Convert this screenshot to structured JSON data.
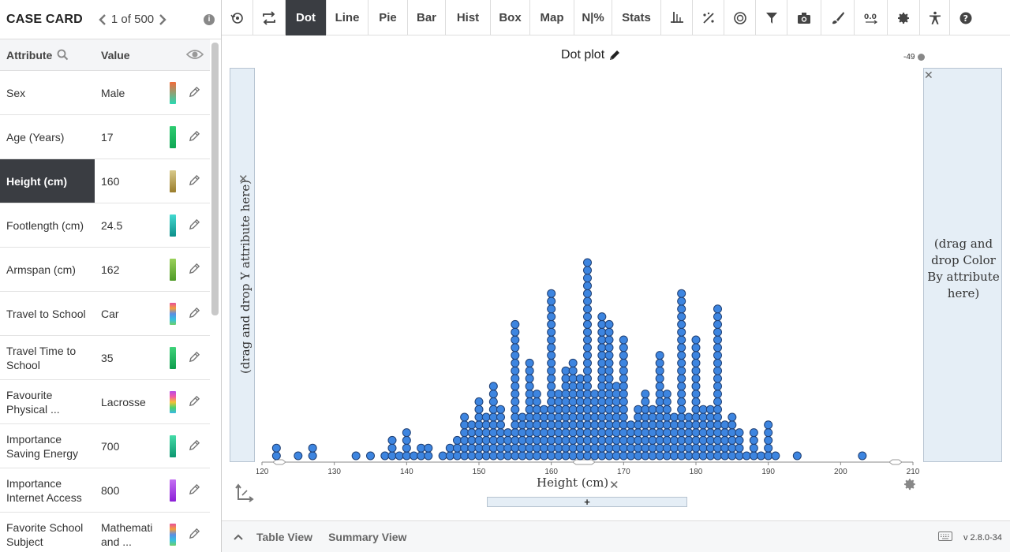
{
  "case_card": {
    "title": "CASE CARD",
    "position": "1 of 500",
    "attr_header": "Attribute",
    "value_header": "Value",
    "rows": [
      {
        "attribute": "Sex",
        "value": "Male",
        "swatch": [
          "#f26b3a",
          "#28d9b2"
        ]
      },
      {
        "attribute": "Age (Years)",
        "value": "17",
        "swatch": [
          "#2ecc71",
          "#0fa653"
        ]
      },
      {
        "attribute": "Height (cm)",
        "value": "160",
        "swatch": [
          "#d8c98a",
          "#9a7d2c"
        ],
        "selected": true
      },
      {
        "attribute": "Footlength (cm)",
        "value": "24.5",
        "swatch": [
          "#43d9d0",
          "#0d8f8a"
        ]
      },
      {
        "attribute": "Armspan (cm)",
        "value": "162",
        "swatch": [
          "#9ad15a",
          "#4f9a27"
        ]
      },
      {
        "attribute": "Travel to School",
        "value": "Car",
        "swatch": [
          "#e84e9c",
          "#f3a03c",
          "#5b8ee5",
          "#34c0e0",
          "#6ed16b"
        ]
      },
      {
        "attribute": "Travel Time to School",
        "value": "35",
        "swatch": [
          "#3fd37a",
          "#0e9c4c"
        ]
      },
      {
        "attribute": "Favourite Physical ...",
        "value": "Lacrosse",
        "swatch": [
          "#b74ae8",
          "#f25aa4",
          "#f3c234",
          "#4bd16b",
          "#38b8e6"
        ]
      },
      {
        "attribute": "Importance Saving Energy",
        "value": "700",
        "swatch": [
          "#45dca8",
          "#0d9670"
        ]
      },
      {
        "attribute": "Importance Internet Access",
        "value": "800",
        "swatch": [
          "#c470f3",
          "#8b1fd6"
        ]
      },
      {
        "attribute": "Favorite School Subject",
        "value": "Mathemati and ...",
        "swatch": [
          "#e84e9c",
          "#f3a03c",
          "#5b8ee5",
          "#34c0e0",
          "#6ed16b"
        ]
      }
    ]
  },
  "toolbar": {
    "items": [
      {
        "label": "",
        "icon": "reset-icon",
        "w": 40
      },
      {
        "label": "",
        "icon": "swap-axes-icon",
        "w": 41
      },
      {
        "label": "Dot",
        "w": 52,
        "active": true
      },
      {
        "label": "Line",
        "w": 53
      },
      {
        "label": "Pie",
        "w": 50
      },
      {
        "label": "Bar",
        "w": 48
      },
      {
        "label": "Hist",
        "w": 57
      },
      {
        "label": "Box",
        "w": 50
      },
      {
        "label": "Map",
        "w": 56
      },
      {
        "label": "N|%",
        "w": 48
      },
      {
        "label": "Stats",
        "w": 62
      },
      {
        "label": "",
        "icon": "axis-icon",
        "w": 40
      },
      {
        "label": "",
        "icon": "percent-icon",
        "w": 40
      },
      {
        "label": "",
        "icon": "target-icon",
        "w": 40
      },
      {
        "label": "",
        "icon": "filter-icon",
        "w": 40
      },
      {
        "label": "",
        "icon": "camera-icon",
        "w": 43
      },
      {
        "label": "",
        "icon": "brush-icon",
        "w": 42
      },
      {
        "label": "",
        "icon": "decimal-icon",
        "w": 42
      },
      {
        "label": "",
        "icon": "gear-icon",
        "w": 41
      },
      {
        "label": "",
        "icon": "accessibility-icon",
        "w": 38
      },
      {
        "label": "",
        "icon": "help-icon",
        "w": 40
      }
    ]
  },
  "plot": {
    "title": "Dot plot",
    "count_label": "-49",
    "y_drop_text": "(drag and drop Y attribute here)",
    "color_drop_text": "(drag and drop Color By attribute here)",
    "x_axis_label": "Height (cm)",
    "add_label": "+"
  },
  "chart_data": {
    "type": "scatter",
    "title": "Dot plot",
    "xlabel": "Height (cm)",
    "ylabel": "",
    "xlim": [
      120,
      210
    ],
    "ticks": [
      120,
      130,
      140,
      150,
      160,
      170,
      180,
      190,
      200,
      210
    ],
    "point_color": "#3d85e0",
    "heights": [
      122,
      122,
      125,
      127,
      127,
      133,
      135,
      137,
      138,
      138,
      138,
      139,
      140,
      140,
      140,
      140,
      141,
      142,
      142,
      143,
      143,
      145,
      146,
      146,
      147,
      147,
      147,
      148,
      148,
      148,
      148,
      148,
      148,
      149,
      149,
      149,
      149,
      149,
      150,
      150,
      150,
      150,
      150,
      150,
      150,
      150,
      151,
      151,
      151,
      151,
      151,
      151,
      152,
      152,
      152,
      152,
      152,
      152,
      152,
      152,
      152,
      152,
      153,
      153,
      153,
      153,
      153,
      153,
      153,
      154,
      154,
      154,
      154,
      155,
      155,
      155,
      155,
      155,
      155,
      155,
      155,
      155,
      155,
      155,
      155,
      155,
      155,
      155,
      155,
      155,
      155,
      156,
      156,
      156,
      156,
      156,
      156,
      157,
      157,
      157,
      157,
      157,
      157,
      157,
      157,
      157,
      157,
      157,
      157,
      157,
      158,
      158,
      158,
      158,
      158,
      158,
      158,
      158,
      158,
      159,
      159,
      159,
      159,
      159,
      159,
      159,
      160,
      160,
      160,
      160,
      160,
      160,
      160,
      160,
      160,
      160,
      160,
      160,
      160,
      160,
      160,
      160,
      160,
      160,
      160,
      160,
      160,
      160,
      161,
      161,
      161,
      161,
      161,
      161,
      161,
      161,
      161,
      162,
      162,
      162,
      162,
      162,
      162,
      162,
      162,
      162,
      162,
      162,
      162,
      163,
      163,
      163,
      163,
      163,
      163,
      163,
      163,
      163,
      163,
      163,
      163,
      163,
      164,
      164,
      164,
      164,
      164,
      164,
      164,
      164,
      164,
      164,
      164,
      165,
      165,
      165,
      165,
      165,
      165,
      165,
      165,
      165,
      165,
      165,
      165,
      165,
      165,
      165,
      165,
      165,
      165,
      165,
      165,
      165,
      165,
      165,
      165,
      165,
      165,
      166,
      166,
      166,
      166,
      166,
      166,
      166,
      166,
      166,
      167,
      167,
      167,
      167,
      167,
      167,
      167,
      167,
      167,
      167,
      167,
      167,
      167,
      167,
      167,
      167,
      167,
      167,
      167,
      168,
      168,
      168,
      168,
      168,
      168,
      168,
      168,
      168,
      168,
      168,
      168,
      168,
      168,
      168,
      168,
      168,
      168,
      169,
      169,
      169,
      169,
      169,
      169,
      169,
      169,
      169,
      169,
      170,
      170,
      170,
      170,
      170,
      170,
      170,
      170,
      170,
      170,
      170,
      170,
      170,
      170,
      170,
      170,
      171,
      171,
      171,
      171,
      171,
      172,
      172,
      172,
      172,
      172,
      172,
      172,
      173,
      173,
      173,
      173,
      173,
      173,
      173,
      173,
      173,
      174,
      174,
      174,
      174,
      174,
      174,
      174,
      175,
      175,
      175,
      175,
      175,
      175,
      175,
      175,
      175,
      175,
      175,
      175,
      175,
      175,
      176,
      176,
      176,
      176,
      176,
      176,
      176,
      176,
      176,
      177,
      177,
      177,
      177,
      177,
      177,
      178,
      178,
      178,
      178,
      178,
      178,
      178,
      178,
      178,
      178,
      178,
      178,
      178,
      178,
      178,
      178,
      178,
      178,
      178,
      178,
      178,
      178,
      179,
      179,
      179,
      179,
      179,
      179,
      180,
      180,
      180,
      180,
      180,
      180,
      180,
      180,
      180,
      180,
      180,
      180,
      180,
      180,
      180,
      180,
      181,
      181,
      181,
      181,
      181,
      181,
      181,
      182,
      182,
      182,
      182,
      182,
      182,
      182,
      183,
      183,
      183,
      183,
      183,
      183,
      183,
      183,
      183,
      183,
      183,
      183,
      183,
      183,
      183,
      183,
      183,
      183,
      183,
      183,
      184,
      184,
      184,
      184,
      184,
      185,
      185,
      185,
      185,
      185,
      185,
      186,
      186,
      186,
      186,
      187,
      188,
      188,
      188,
      188,
      189,
      190,
      190,
      190,
      190,
      190,
      191,
      194,
      203
    ],
    "grid": false,
    "legend": "none"
  },
  "bottom": {
    "tabs": [
      "Table View",
      "Summary View"
    ],
    "version": "v 2.8.0-34"
  }
}
